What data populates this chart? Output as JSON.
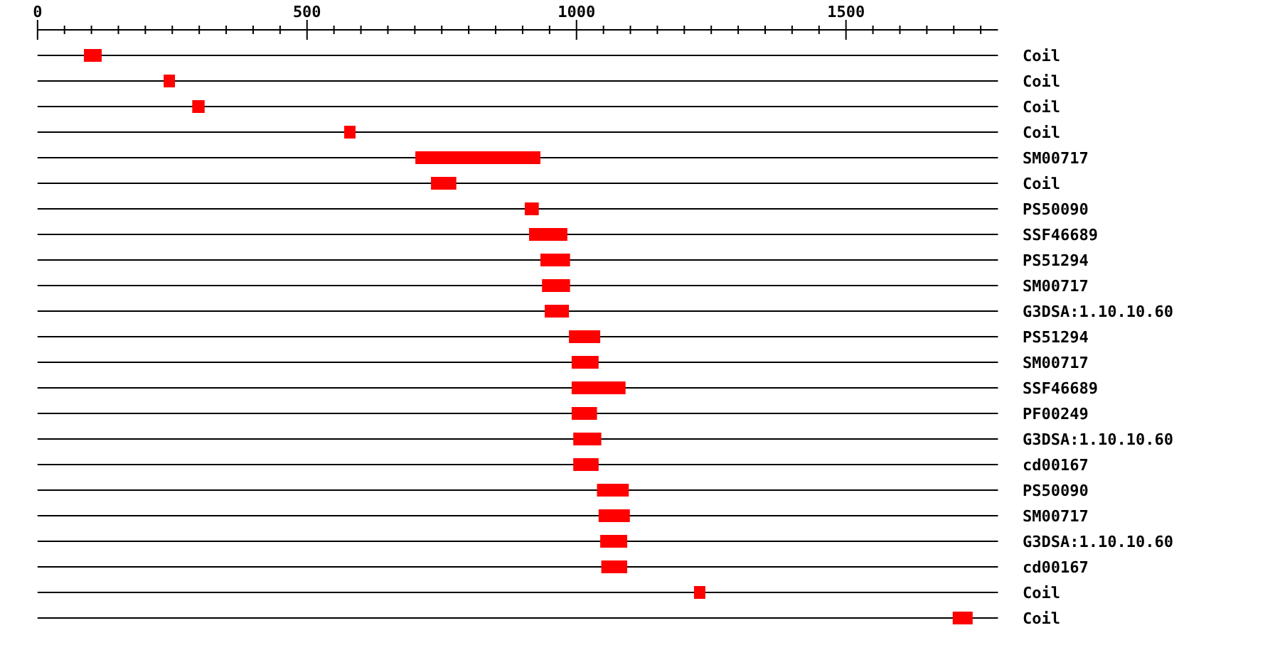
{
  "chart_data": {
    "type": "bar",
    "orientation": "horizontal",
    "grid": "y",
    "color": "#ff0000",
    "categories": [
      "Coil",
      "Coil",
      "Coil",
      "Coil",
      "SM00717",
      "Coil",
      "PS50090",
      "SSF46689",
      "PS51294",
      "SM00717",
      "G3DSA:1.10.10.60",
      "PS51294",
      "SM00717",
      "SSF46689",
      "PF00249",
      "G3DSA:1.10.10.60",
      "cd00167",
      "PS50090",
      "SM00717",
      "G3DSA:1.10.10.60",
      "cd00167",
      "Coil",
      "Coil"
    ],
    "base": [
      86,
      234,
      287,
      569,
      701,
      730,
      904,
      912,
      933,
      936,
      941,
      986,
      991,
      991,
      991,
      994,
      994,
      1038,
      1041,
      1044,
      1046,
      1218,
      1698
    ],
    "values": [
      33,
      21,
      23,
      21,
      232,
      47,
      26,
      71,
      55,
      52,
      45,
      58,
      50,
      100,
      47,
      52,
      47,
      59,
      58,
      50,
      48,
      21,
      37
    ],
    "xlim": [
      0,
      1782
    ],
    "xticks": [
      0,
      {
        "value": 50,
        "label": null
      },
      {
        "value": 100,
        "label": null
      },
      {
        "value": 150,
        "label": null
      },
      {
        "value": 200,
        "label": null
      },
      {
        "value": 250,
        "label": null
      },
      {
        "value": 300,
        "label": null
      },
      {
        "value": 350,
        "label": null
      },
      {
        "value": 400,
        "label": null
      },
      {
        "value": 450,
        "label": null
      },
      500,
      {
        "value": 550,
        "label": null
      },
      {
        "value": 600,
        "label": null
      },
      {
        "value": 650,
        "label": null
      },
      {
        "value": 700,
        "label": null
      },
      {
        "value": 750,
        "label": null
      },
      {
        "value": 800,
        "label": null
      },
      {
        "value": 850,
        "label": null
      },
      {
        "value": 900,
        "label": null
      },
      {
        "value": 950,
        "label": null
      },
      1000,
      {
        "value": 1050,
        "label": null
      },
      {
        "value": 1100,
        "label": null
      },
      {
        "value": 1150,
        "label": null
      },
      {
        "value": 1200,
        "label": null
      },
      {
        "value": 1250,
        "label": null
      },
      {
        "value": 1300,
        "label": null
      },
      {
        "value": 1350,
        "label": null
      },
      {
        "value": 1400,
        "label": null
      },
      {
        "value": 1450,
        "label": null
      },
      1500,
      {
        "value": 1550,
        "label": null
      },
      {
        "value": 1600,
        "label": null
      },
      {
        "value": 1650,
        "label": null
      },
      {
        "value": 1700,
        "label": null
      },
      {
        "value": 1750,
        "label": null
      }
    ]
  }
}
